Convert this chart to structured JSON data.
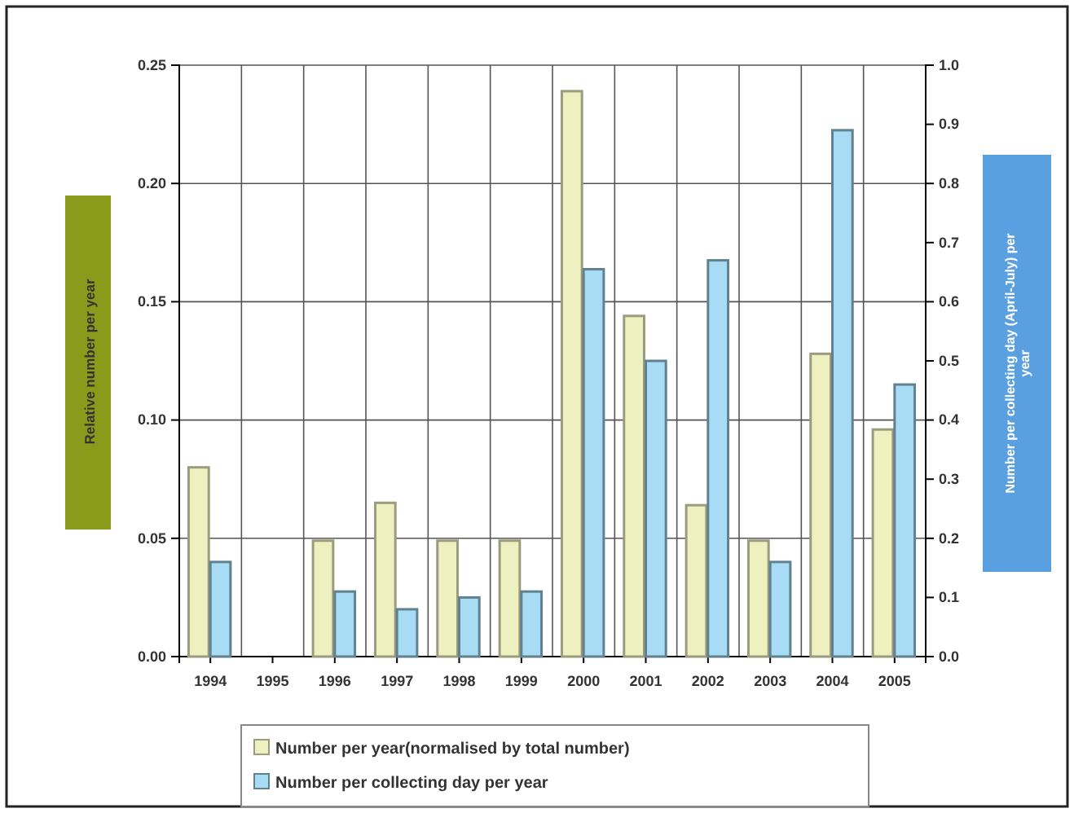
{
  "chart_data": {
    "type": "bar",
    "categories": [
      "1994",
      "1995",
      "1996",
      "1997",
      "1998",
      "1999",
      "2000",
      "2001",
      "2002",
      "2003",
      "2004",
      "2005"
    ],
    "ylabel": "Relative number per year",
    "y2label": "Number per collecting day (April-July) per year",
    "series": [
      {
        "name": "Number per year(normalised by total number)",
        "color": "#eef0c0",
        "values": [
          0.08,
          null,
          0.049,
          0.065,
          0.049,
          0.049,
          0.239,
          0.144,
          0.064,
          0.049,
          0.128,
          0.096
        ]
      },
      {
        "name": "Number per collecting day per year",
        "color": "#a8dcf5",
        "axis": "y2",
        "values": [
          0.16,
          null,
          0.11,
          0.08,
          0.1,
          0.11,
          0.655,
          0.5,
          0.67,
          0.16,
          0.89,
          0.46
        ]
      }
    ],
    "ylim": [
      0,
      0.25
    ],
    "yticks": [
      {
        "value": 0,
        "label": "0.00"
      },
      {
        "value": 0.05,
        "label": "0.05"
      },
      {
        "value": 0.1,
        "label": "0.10"
      },
      {
        "value": 0.15,
        "label": "0.15"
      },
      {
        "value": 0.2,
        "label": "0.20"
      },
      {
        "value": 0.25,
        "label": "0.25"
      }
    ],
    "y2lim": [
      0,
      1
    ],
    "y2ticks": [
      {
        "value": 0,
        "label": "0.0"
      },
      {
        "value": 0.1,
        "label": "0.1"
      },
      {
        "value": 0.2,
        "label": "0.2"
      },
      {
        "value": 0.3,
        "label": "0.3"
      },
      {
        "value": 0.4,
        "label": "0.4"
      },
      {
        "value": 0.5,
        "label": "0.5"
      },
      {
        "value": 0.6,
        "label": "0.6"
      },
      {
        "value": 0.7,
        "label": "0.7"
      },
      {
        "value": 0.8,
        "label": "0.8"
      },
      {
        "value": 0.9,
        "label": "0.9"
      },
      {
        "value": 1,
        "label": "1.0"
      }
    ],
    "grid": true,
    "legend": "bottom"
  }
}
